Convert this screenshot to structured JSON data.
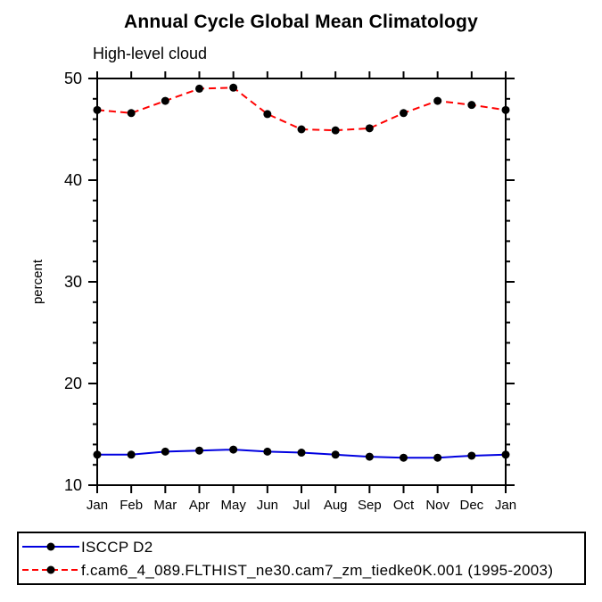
{
  "chart_data": {
    "type": "line",
    "title": "Annual Cycle Global Mean Climatology",
    "subtitle": "High-level cloud",
    "categories": [
      "Jan",
      "Feb",
      "Mar",
      "Apr",
      "May",
      "Jun",
      "Jul",
      "Aug",
      "Sep",
      "Oct",
      "Nov",
      "Dec",
      "Jan"
    ],
    "xlabel": "",
    "ylabel": "percent",
    "ylim": [
      10,
      50
    ],
    "yticks": [
      10,
      20,
      30,
      40,
      50
    ],
    "y_minor_step": 2,
    "grid": false,
    "legend_position": "boxed-bottom-left",
    "series": [
      {
        "name": "ISCCP D2",
        "color": "#0000e0",
        "line_style": "solid",
        "marker": "filled-circle",
        "marker_color": "#000000",
        "values": [
          13.0,
          13.0,
          13.3,
          13.4,
          13.5,
          13.3,
          13.2,
          13.0,
          12.8,
          12.7,
          12.7,
          12.9,
          13.0
        ]
      },
      {
        "name": "f.cam6_4_089.FLTHIST_ne30.cam7_zm_tiedke0K.001 (1995-2003)",
        "color": "#ff0000",
        "line_style": "dashed",
        "marker": "filled-circle",
        "marker_color": "#000000",
        "values": [
          46.9,
          46.6,
          47.8,
          49.0,
          49.1,
          46.5,
          45.0,
          44.9,
          45.1,
          46.6,
          47.8,
          47.4,
          46.9
        ]
      }
    ]
  },
  "colors": {
    "background": "#ffffff",
    "axis": "#000000",
    "marker": "#000000",
    "series_blue": "#0000e0",
    "series_red": "#ff0000"
  }
}
